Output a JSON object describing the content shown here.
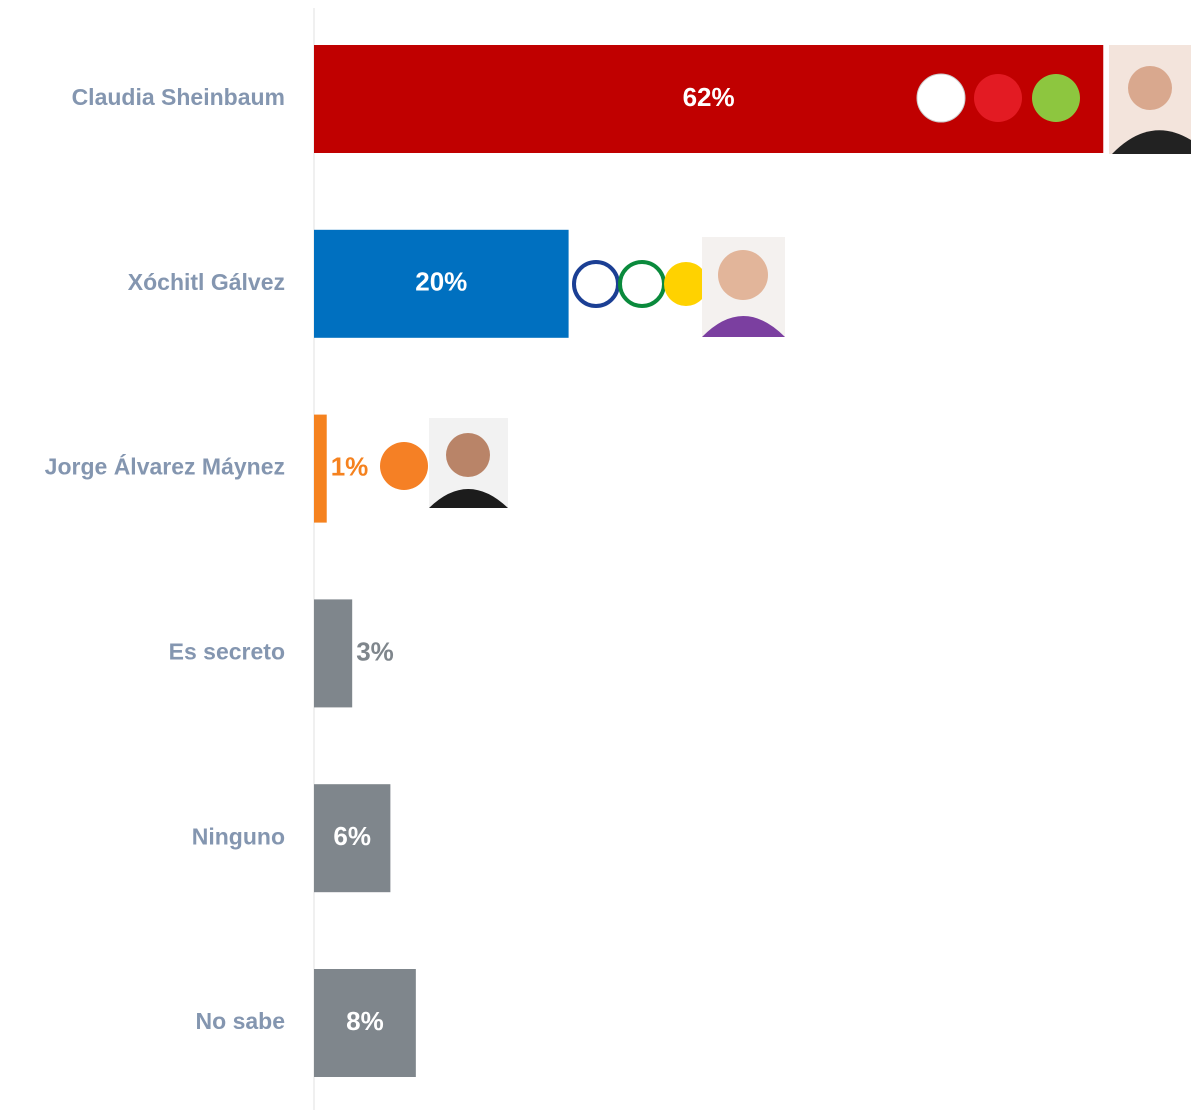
{
  "chart_data": {
    "type": "bar",
    "orientation": "horizontal",
    "categories": [
      "Claudia Sheinbaum",
      "Xóchitl Gálvez",
      "Jorge Álvarez Máynez",
      "Es secreto",
      "Ninguno",
      "No sabe"
    ],
    "values": [
      62,
      20,
      1,
      3,
      6,
      8
    ],
    "value_labels": [
      "62%",
      "20%",
      "1%",
      "3%",
      "6%",
      "8%"
    ],
    "colors": [
      "#c00000",
      "#0070c0",
      "#f5821f",
      "#7f868c",
      "#7f868c",
      "#7f868c"
    ]
  }
}
